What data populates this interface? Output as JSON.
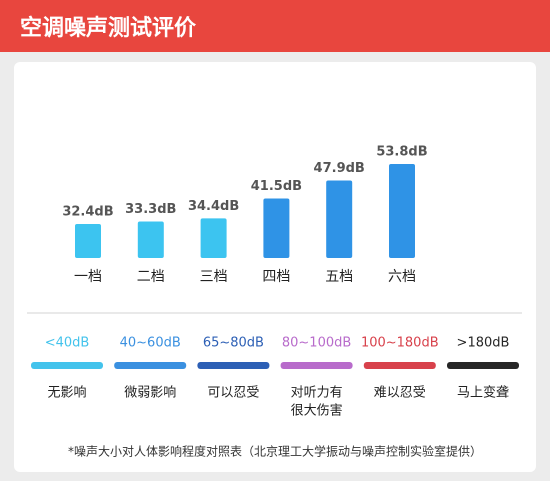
{
  "chart_data": {
    "type": "bar",
    "title": "空调噪声测试评价",
    "categories": [
      "一档",
      "二档",
      "三档",
      "四档",
      "五档",
      "六档"
    ],
    "values": [
      32.4,
      33.3,
      34.4,
      41.5,
      47.9,
      53.8
    ],
    "value_labels": [
      "32.4dB",
      "33.3dB",
      "34.4dB",
      "41.5dB",
      "47.9dB",
      "53.8dB"
    ],
    "colors": [
      "#3cc4f0",
      "#3cc4f0",
      "#3cc4f0",
      "#2f93e6",
      "#2f93e6",
      "#2f93e6"
    ]
  },
  "noise_scale": [
    {
      "range": "<40dB",
      "color": "#43c3ec",
      "description": [
        "无影响"
      ]
    },
    {
      "range": "40~60dB",
      "color": "#3a90e0",
      "description": [
        "微弱影响"
      ]
    },
    {
      "range": "65~80dB",
      "color": "#2c5fb5",
      "description": [
        "可以忍受"
      ]
    },
    {
      "range": "80~100dB",
      "color": "#b86bcb",
      "description": [
        "对听力有",
        "很大伤害"
      ]
    },
    {
      "range": "100~180dB",
      "color": "#d8414b",
      "description": [
        "难以忍受"
      ]
    },
    {
      "range": ">180dB",
      "color": "#262626",
      "description": [
        "马上变聋"
      ]
    }
  ],
  "footnote": "*噪声大小对人体影响程度对照表（北京理工大学振动与噪声控制实验室提供）"
}
